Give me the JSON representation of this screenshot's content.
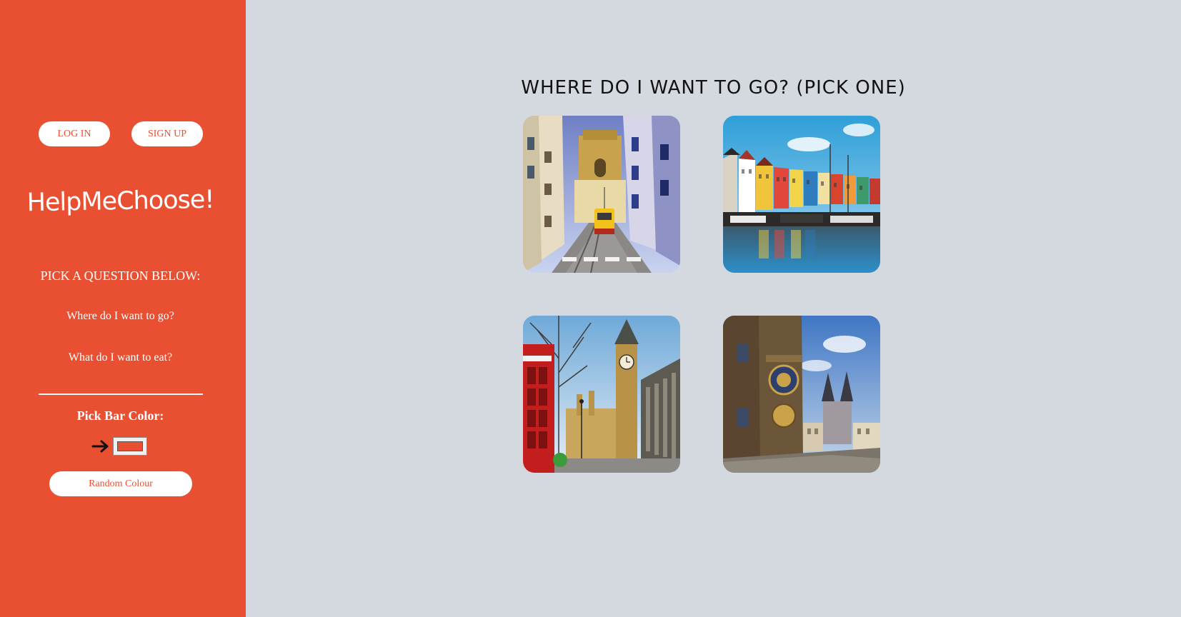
{
  "auth": {
    "login_label": "LOG IN",
    "signup_label": "SIGN UP"
  },
  "brand": {
    "logo_text": "HelpMeChoose!"
  },
  "sidebar": {
    "pick_heading": "PICK A QUESTION BELOW:",
    "questions": [
      {
        "label": "Where do I want to go?"
      },
      {
        "label": "What do I want to eat?"
      }
    ],
    "bar_color_heading": "Pick Bar Color:",
    "random_colour_label": "Random Colour",
    "arrow_icon": "arrow-right-icon"
  },
  "main": {
    "title": "WHERE DO I WANT TO GO? (PICK ONE)",
    "options": [
      {
        "icon": "lisbon-tram-street-photo"
      },
      {
        "icon": "copenhagen-nyhavn-harbor-photo"
      },
      {
        "icon": "london-big-ben-phone-booth-photo"
      },
      {
        "icon": "prague-astronomical-clock-photo"
      }
    ]
  },
  "colors": {
    "sidebar_bg": "#e95032",
    "main_bg": "#d4d8df",
    "button_bg": "#ffffff",
    "button_text": "#e95032",
    "selected_bar_color": "#e95032"
  }
}
